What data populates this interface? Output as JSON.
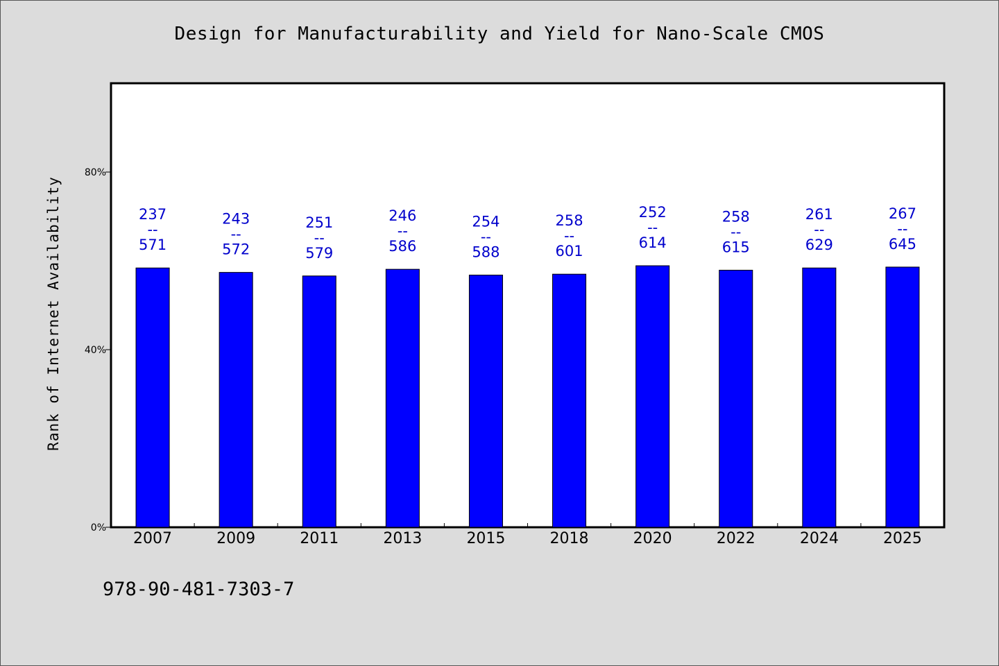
{
  "title": "Design for Manufacturability and Yield for Nano-Scale CMOS",
  "footnote": "978-90-481-7303-7",
  "colors": {
    "bar": "#0000ff",
    "label": "#0000cc",
    "background": "#dcdcdc",
    "plot_bg": "#ffffff"
  },
  "chart_data": {
    "type": "bar",
    "title": "Design for Manufacturability and Yield for Nano-Scale CMOS",
    "xlabel": "",
    "ylabel": "Rank of Internet Availability",
    "ylim": [
      0,
      1
    ],
    "yticks": [
      0,
      0.4,
      0.8
    ],
    "ytick_labels": [
      "0%",
      "40%",
      "80%"
    ],
    "grid": false,
    "categories": [
      "2007",
      "2009",
      "2011",
      "2013",
      "2015",
      "2018",
      "2020",
      "2022",
      "2024",
      "2025"
    ],
    "values": [
      0.584,
      0.574,
      0.566,
      0.581,
      0.568,
      0.57,
      0.589,
      0.579,
      0.584,
      0.586
    ],
    "annotations": [
      [
        "237",
        "--",
        "571"
      ],
      [
        "243",
        "--",
        "572"
      ],
      [
        "251",
        "--",
        "579"
      ],
      [
        "246",
        "--",
        "586"
      ],
      [
        "254",
        "--",
        "588"
      ],
      [
        "258",
        "--",
        "601"
      ],
      [
        "252",
        "--",
        "614"
      ],
      [
        "258",
        "--",
        "615"
      ],
      [
        "261",
        "--",
        "629"
      ],
      [
        "267",
        "--",
        "645"
      ]
    ]
  }
}
